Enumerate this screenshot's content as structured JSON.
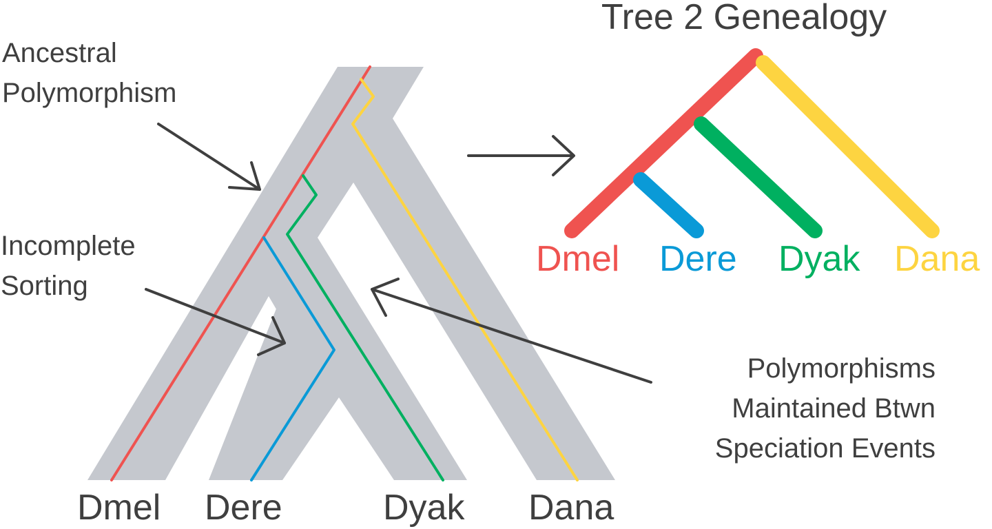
{
  "title": "Tree 2 Genealogy",
  "annotations": {
    "ancestral_line1": "Ancestral",
    "ancestral_line2": "Polymorphism",
    "incomplete_line1": "Incomplete",
    "incomplete_line2": "Sorting",
    "maintained_line1": "Polymorphisms",
    "maintained_line2": "Maintained Btwn",
    "maintained_line3": "Speciation Events"
  },
  "species_tree": {
    "tip_labels": [
      "Dmel",
      "Dere",
      "Dyak",
      "Dana"
    ]
  },
  "gene_tree": {
    "tip_labels": [
      "Dmel",
      "Dere",
      "Dyak",
      "Dana"
    ]
  },
  "colors": {
    "species_tree_fill": "#c5c8ce",
    "text": "#3f3f3f",
    "arrow": "#3f3f3f",
    "Dmel": "#ef5350",
    "Dere": "#0a9ad7",
    "Dyak": "#00b060",
    "Dana": "#fdd441"
  }
}
